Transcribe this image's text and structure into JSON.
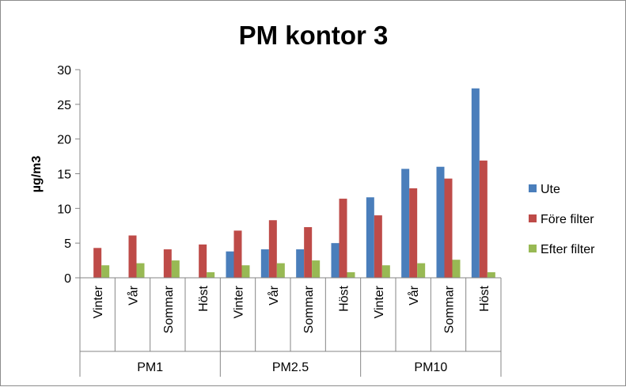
{
  "chart_data": {
    "type": "bar",
    "title": "PM kontor 3",
    "xlabel": "",
    "ylabel": "µg/m3",
    "ylim": [
      0,
      30
    ],
    "yticks": [
      0,
      5,
      10,
      15,
      20,
      25,
      30
    ],
    "grid": false,
    "legend_position": "right",
    "groups": [
      {
        "label": "PM1",
        "categories": [
          "Vinter",
          "Vår",
          "Sommar",
          "Höst"
        ]
      },
      {
        "label": "PM2.5",
        "categories": [
          "Vinter",
          "Vår",
          "Sommar",
          "Höst"
        ]
      },
      {
        "label": "PM10",
        "categories": [
          "Vinter",
          "Vår",
          "Sommar",
          "Höst"
        ]
      }
    ],
    "series": [
      {
        "name": "Ute",
        "color": "#4a7ebb",
        "values": [
          null,
          null,
          null,
          null,
          3.8,
          4.1,
          4.1,
          5.0,
          11.6,
          15.7,
          16.0,
          27.3
        ]
      },
      {
        "name": "Före filter",
        "color": "#be4b48",
        "values": [
          4.3,
          6.1,
          4.1,
          4.8,
          6.8,
          8.3,
          7.3,
          11.4,
          9.0,
          12.9,
          14.3,
          16.9
        ]
      },
      {
        "name": "Efter filter",
        "color": "#98b954",
        "values": [
          1.8,
          2.1,
          2.5,
          0.8,
          1.8,
          2.1,
          2.5,
          0.8,
          1.8,
          2.1,
          2.6,
          0.8
        ]
      }
    ]
  }
}
